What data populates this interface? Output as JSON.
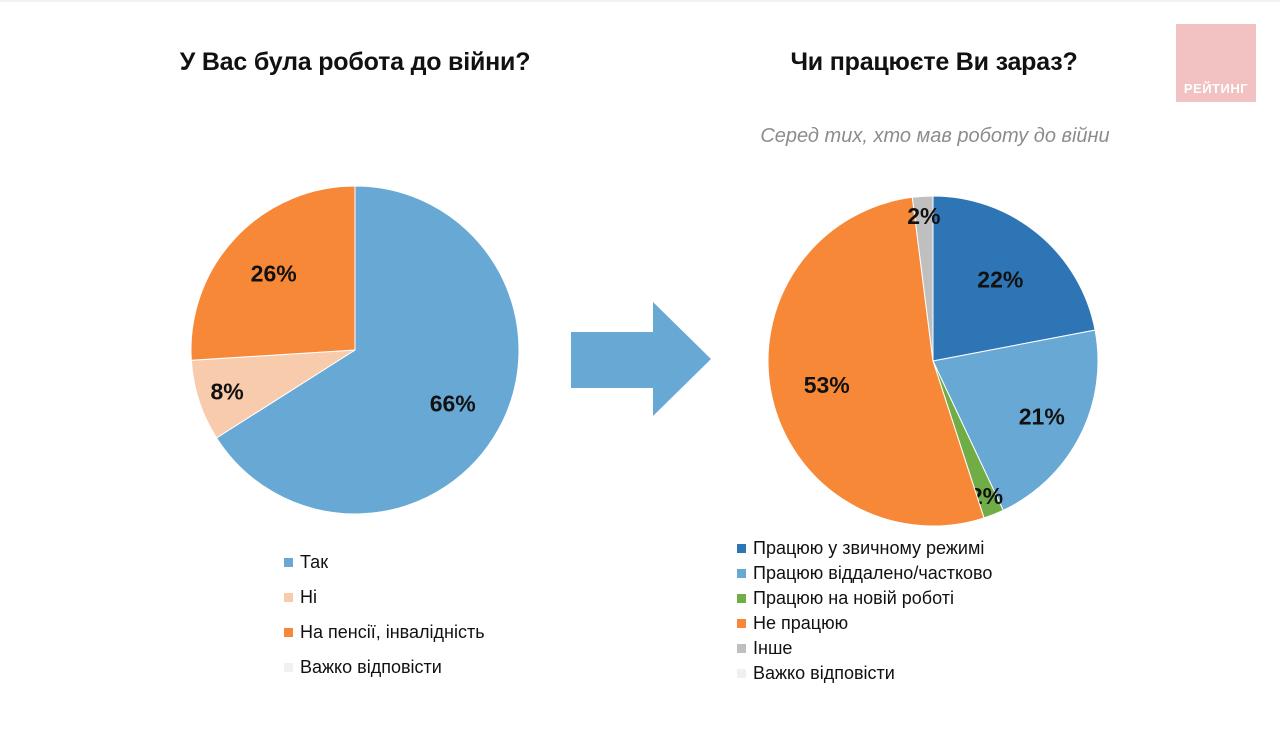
{
  "logo": {
    "text": "РЕЙТИНГ",
    "bg": "#f2c1c1"
  },
  "chart_data": [
    {
      "type": "pie",
      "title": "У Вас була робота до війни?",
      "slices": [
        {
          "label": "Так",
          "value": 66,
          "display": "66%",
          "color": "#67a8d4"
        },
        {
          "label": "Ні",
          "value": 8,
          "display": "8%",
          "color": "#f8cbad"
        },
        {
          "label": "На пенсії, інвалідність",
          "value": 26,
          "display": "26%",
          "color": "#f78838"
        },
        {
          "label": "Важко відповісти",
          "value": 0,
          "display": "",
          "color": "#f0f0f0"
        }
      ],
      "start": "12 o'clock",
      "direction": "clockwise",
      "legend": "bottom"
    },
    {
      "type": "pie",
      "title": "Чи працюєте Ви зараз?",
      "subtitle": "Серед тих, хто мав роботу до війни",
      "slices": [
        {
          "label": "Працюю у звичному режимі",
          "value": 22,
          "display": "22%",
          "color": "#2e75b6"
        },
        {
          "label": "Працюю віддалено/частково",
          "value": 21,
          "display": "21%",
          "color": "#67a8d4"
        },
        {
          "label": "Працюю на новій роботі",
          "value": 2,
          "display": "2%",
          "color": "#70ad47"
        },
        {
          "label": "Не працюю",
          "value": 53,
          "display": "53%",
          "color": "#f78838"
        },
        {
          "label": "Інше",
          "value": 2,
          "display": "2%",
          "color": "#bfbfbf"
        },
        {
          "label": "Важко відповісти",
          "value": 0,
          "display": "",
          "color": "#f0f0f0"
        }
      ],
      "start": "12 o'clock",
      "direction": "clockwise",
      "legend": "bottom"
    }
  ]
}
